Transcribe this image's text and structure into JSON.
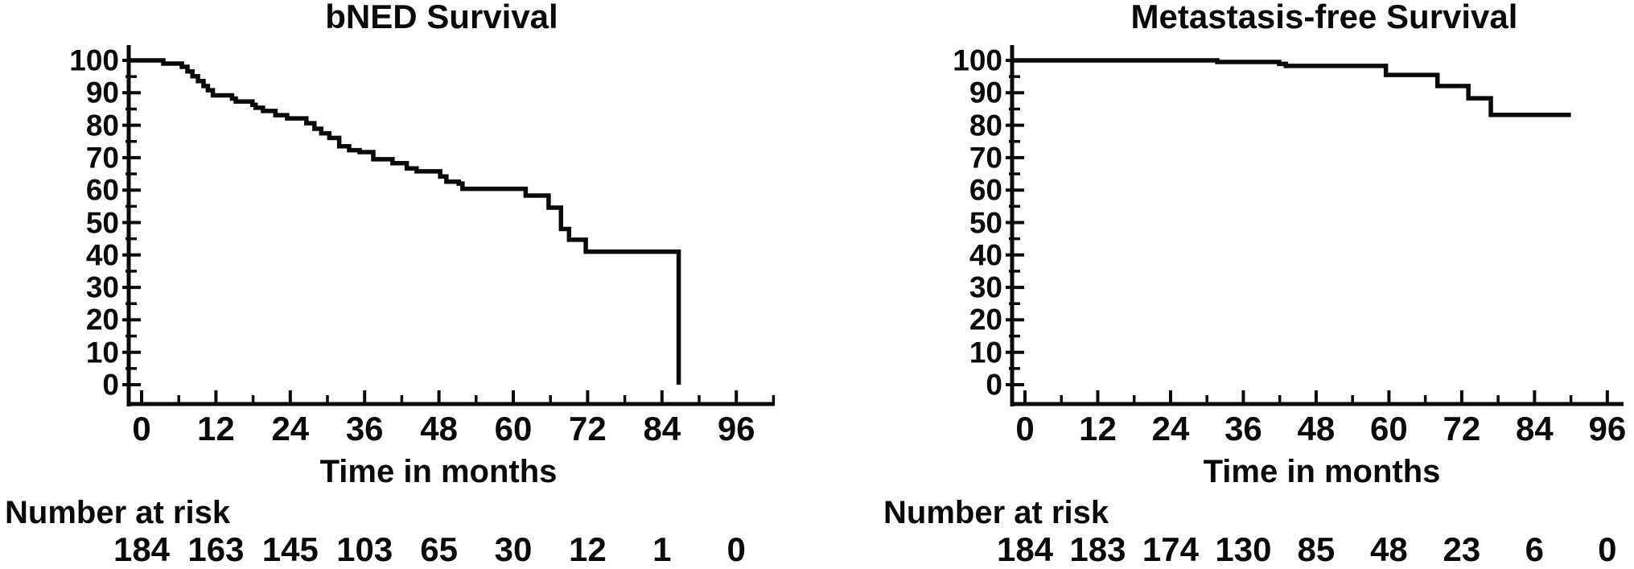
{
  "figure": {
    "background_color": "#ffffff",
    "ink_color": "#0a0a0a"
  },
  "chart_data": [
    {
      "type": "line",
      "chart_kind": "kaplan-meier-step",
      "title": "bNED Survival",
      "xlabel": "Time in months",
      "ylabel": "",
      "xlim": [
        0,
        96
      ],
      "ylim": [
        0,
        100
      ],
      "x_ticks": [
        0,
        12,
        24,
        36,
        48,
        60,
        72,
        84,
        96
      ],
      "y_ticks": [
        0,
        10,
        20,
        30,
        40,
        50,
        60,
        70,
        80,
        90,
        100
      ],
      "x_minor_step": 6,
      "y_minor_step": 5,
      "grid": false,
      "legend": "none",
      "series": [
        {
          "name": "bNED survival",
          "color": "#0a0a0a",
          "start": [
            0,
            100
          ],
          "steps": [
            [
              3.5,
              99
            ],
            [
              6.5,
              98
            ],
            [
              7.4,
              96.6
            ],
            [
              8.2,
              95.1
            ],
            [
              9.1,
              93.6
            ],
            [
              10.0,
              92.1
            ],
            [
              10.7,
              90.8
            ],
            [
              11.5,
              89.2
            ],
            [
              14.6,
              88.2
            ],
            [
              15.2,
              87.3
            ],
            [
              17.9,
              86.3
            ],
            [
              18.4,
              85.4
            ],
            [
              19.6,
              84.4
            ],
            [
              21.6,
              83.1
            ],
            [
              23.5,
              82.1
            ],
            [
              26.6,
              80.6
            ],
            [
              27.9,
              78.9
            ],
            [
              29.0,
              77.5
            ],
            [
              30.3,
              76.1
            ],
            [
              31.9,
              73.5
            ],
            [
              33.5,
              72.3
            ],
            [
              35.2,
              71.7
            ],
            [
              37.4,
              69.5
            ],
            [
              40.5,
              68.3
            ],
            [
              42.8,
              66.7
            ],
            [
              44.4,
              65.8
            ],
            [
              48.2,
              64.2
            ],
            [
              49.2,
              62.6
            ],
            [
              51.2,
              62.0
            ],
            [
              51.8,
              60.4
            ],
            [
              62.0,
              58.3
            ],
            [
              65.7,
              54.6
            ],
            [
              67.7,
              48.0
            ],
            [
              69.0,
              44.7
            ],
            [
              71.7,
              41.0
            ],
            [
              86.7,
              0
            ]
          ],
          "end_time": 86.7
        }
      ],
      "number_at_risk": {
        "label": "Number at risk",
        "times": [
          0,
          12,
          24,
          36,
          48,
          60,
          72,
          84,
          96
        ],
        "values": [
          "184",
          "163",
          "145",
          "103",
          "65",
          "30",
          "12",
          "1",
          "0"
        ]
      }
    },
    {
      "type": "line",
      "chart_kind": "kaplan-meier-step",
      "title": "Metastasis-free Survival",
      "xlabel": "Time in months",
      "ylabel": "",
      "xlim": [
        0,
        96
      ],
      "ylim": [
        0,
        100
      ],
      "x_ticks": [
        0,
        12,
        24,
        36,
        48,
        60,
        72,
        84,
        96
      ],
      "y_ticks": [
        0,
        10,
        20,
        30,
        40,
        50,
        60,
        70,
        80,
        90,
        100
      ],
      "x_minor_step": 6,
      "y_minor_step": 5,
      "grid": false,
      "legend": "none",
      "series": [
        {
          "name": "Metastasis-free survival",
          "color": "#0a0a0a",
          "start": [
            0,
            100
          ],
          "steps": [
            [
              31.7,
              99.5
            ],
            [
              41.9,
              98.9
            ],
            [
              43.0,
              98.3
            ],
            [
              59.5,
              95.5
            ],
            [
              68.0,
              92.1
            ],
            [
              73.1,
              88.3
            ],
            [
              76.8,
              83.2
            ]
          ],
          "end_time": 90
        }
      ],
      "number_at_risk": {
        "label": "Number at risk",
        "times": [
          0,
          12,
          24,
          36,
          48,
          60,
          72,
          84,
          96
        ],
        "values": [
          "184",
          "183",
          "174",
          "130",
          "85",
          "48",
          "23",
          "6",
          "0"
        ]
      }
    }
  ]
}
